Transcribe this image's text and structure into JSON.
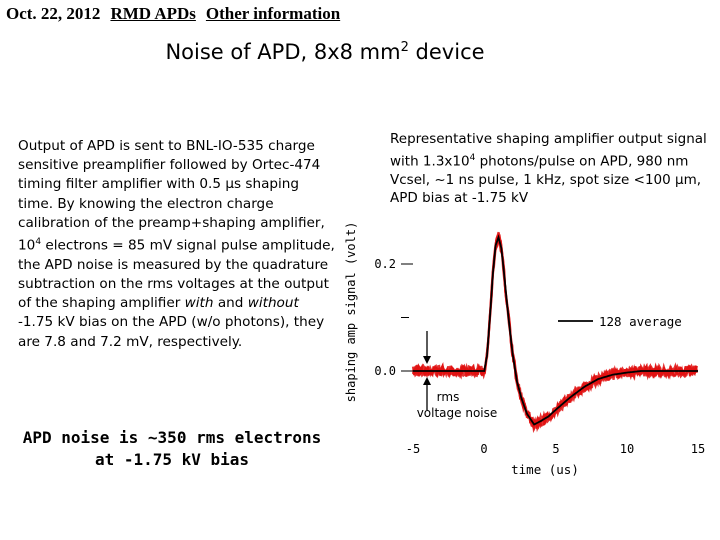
{
  "header": {
    "date": "Oct. 22, 2012",
    "topic": "RMD APDs",
    "section": "Other information"
  },
  "title_prefix": "Noise of APD, 8x8 mm",
  "title_sup": "2",
  "title_suffix": " device",
  "body": {
    "p1": "Output of APD is sent to BNL-IO-535 charge sensitive preamplifier followed by Ortec-474 timing filter amplifier with 0.5 μs shaping time. By knowing the electron charge calibration of the preamp+shaping amplifier, 10",
    "p1_sup": "4",
    "p2": " electrons = 85 mV signal pulse amplitude, the APD noise is measured by the quadrature subtraction on the rms voltages at the output of the shaping amplifier ",
    "with": "with",
    "and": " and ",
    "without": "without",
    "p3": " -1.75 kV bias on the APD (w/o photons), they are 7.8 and 7.2 mV, respectively."
  },
  "conclusion": {
    "line1": "APD noise is ~350 rms electrons",
    "line2": "at -1.75 kV bias"
  },
  "caption": {
    "part1": "Representative shaping amplifier output signal with 1.3x10",
    "sup": "4",
    "part2": " photons/pulse on APD, 980 nm Vcsel, ~1 ns pulse, 1 kHz, spot size <100 μm, APD bias at -1.75 kV"
  },
  "chart_data": {
    "type": "line",
    "xlabel": "time (us)",
    "ylabel": "shaping amp signal (volt)",
    "xlim": [
      -5,
      15
    ],
    "ylim": [
      -0.1,
      0.4
    ],
    "x_ticks": [
      "-5",
      "0",
      "5",
      "10",
      "15"
    ],
    "y_ticks": [
      "0.2",
      "0.0"
    ],
    "legend": {
      "label": "128 average",
      "position": "right"
    },
    "annotation": {
      "line1": "rms",
      "line2": "voltage noise"
    },
    "series": [
      {
        "color": "#000000",
        "x": [
          -5,
          -3,
          -1,
          0,
          0.2,
          0.4,
          0.6,
          0.8,
          1,
          1.2,
          1.4,
          1.7,
          2,
          2.3,
          2.6,
          3,
          3.5,
          4,
          4.5,
          5,
          6,
          7,
          8,
          9,
          10,
          11,
          12,
          13,
          14,
          15
        ],
        "y": [
          0,
          0,
          0,
          0,
          0.03,
          0.1,
          0.18,
          0.235,
          0.25,
          0.23,
          0.18,
          0.1,
          0.03,
          -0.02,
          -0.05,
          -0.08,
          -0.1,
          -0.093,
          -0.085,
          -0.073,
          -0.05,
          -0.03,
          -0.015,
          -0.007,
          -0.003,
          0,
          0,
          0,
          0,
          0
        ]
      }
    ]
  }
}
